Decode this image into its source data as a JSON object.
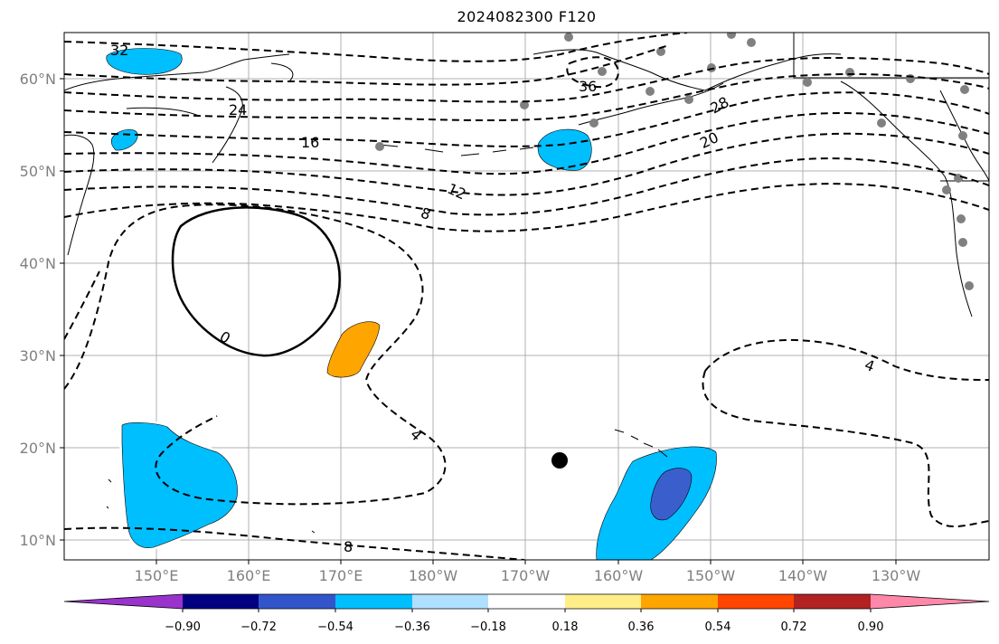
{
  "title": "2024082300 F120",
  "map": {
    "lat_ticks": [
      "60°N",
      "50°N",
      "40°N",
      "30°N",
      "20°N",
      "10°N"
    ],
    "lon_ticks": [
      "150°E",
      "160°E",
      "170°E",
      "180°W",
      "170°W",
      "160°W",
      "150°W",
      "140°W",
      "130°W"
    ],
    "contour_labels": [
      "32",
      "36",
      "24",
      "16",
      "28",
      "20",
      "12",
      "8",
      "0",
      "4",
      "4",
      "8"
    ],
    "colorbar": {
      "ticks": [
        "−0.90",
        "−0.72",
        "−0.54",
        "−0.36",
        "−0.18",
        "0.18",
        "0.36",
        "0.54",
        "0.72",
        "0.90"
      ],
      "colors": [
        "#9933cc",
        "#000080",
        "#3355cc",
        "#00bfff",
        "#b0e0ff",
        "#ffffff",
        "#ffee88",
        "#ffa500",
        "#ff4500",
        "#b22222",
        "#ff88aa"
      ]
    }
  }
}
